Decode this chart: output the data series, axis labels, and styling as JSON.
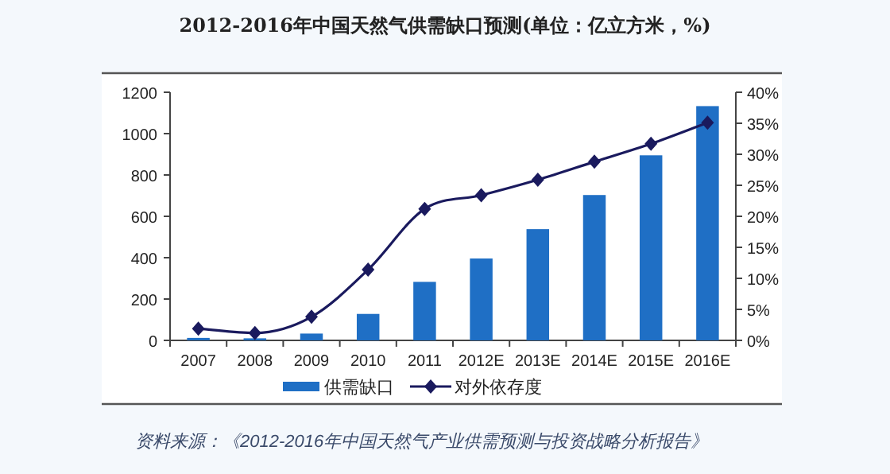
{
  "chart_data": {
    "type": "bar",
    "title": "2012-2016年中国天然气供需缺口预测(单位：亿立方米，%)",
    "categories": [
      "2007",
      "2008",
      "2009",
      "2010",
      "2011",
      "2012E",
      "2013E",
      "2014E",
      "2015E",
      "2016E"
    ],
    "series": [
      {
        "name": "供需缺口",
        "color": "#1f6fc5",
        "values": [
          12,
          10,
          33,
          128,
          283,
          396,
          538,
          703,
          895,
          1133
        ]
      },
      {
        "name": "对外依存度",
        "type": "line",
        "axis": "y2",
        "color": "#1a1a5e",
        "marker": "diamond",
        "values": [
          1.9,
          1.2,
          3.8,
          11.4,
          21.2,
          23.4,
          25.9,
          28.8,
          31.7,
          35.1
        ]
      }
    ],
    "ylim": [
      0,
      1200
    ],
    "yticks": [
      0,
      200,
      400,
      600,
      800,
      1000,
      1200
    ],
    "y2lim": [
      0,
      40
    ],
    "y2ticks": [
      {
        "value": 0,
        "label": "0%"
      },
      {
        "value": 5,
        "label": "5%"
      },
      {
        "value": 10,
        "label": "10%"
      },
      {
        "value": 15,
        "label": "15%"
      },
      {
        "value": 20,
        "label": "20%"
      },
      {
        "value": 25,
        "label": "25%"
      },
      {
        "value": 30,
        "label": "30%"
      },
      {
        "value": 35,
        "label": "35%"
      },
      {
        "value": 40,
        "label": "40%"
      }
    ],
    "legend": "bottom",
    "grid": false,
    "annotations": [
      "资料来源：《2012-2016年中国天然气产业供需预测与投资战略分析报告》"
    ]
  }
}
